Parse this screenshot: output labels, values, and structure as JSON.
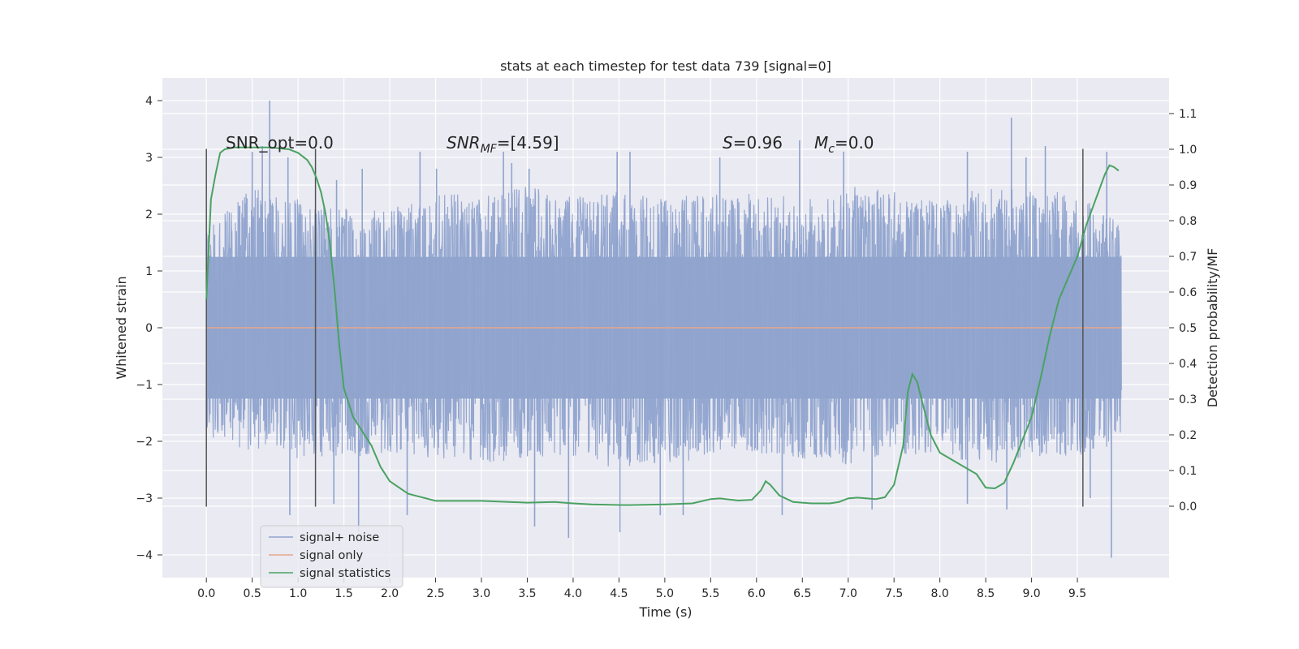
{
  "chart_data": {
    "type": "line",
    "title": "stats at each timestep for test data 739 [signal=0]",
    "xlabel": "Time (s)",
    "ylabel": "Whitened strain",
    "ylabel_right": "Detection probability/MF",
    "xlim": [
      -0.48,
      10.5
    ],
    "ylim": [
      -4.4,
      4.4
    ],
    "ylim_right": [
      -0.2,
      1.2
    ],
    "x_ticks": [
      "0.0",
      "0.5",
      "1.0",
      "1.5",
      "2.0",
      "2.5",
      "3.0",
      "3.5",
      "4.0",
      "4.5",
      "5.0",
      "5.5",
      "6.0",
      "6.5",
      "7.0",
      "7.5",
      "8.0",
      "8.5",
      "9.0",
      "9.5"
    ],
    "y_ticks": [
      "4",
      "3",
      "2",
      "1",
      "0",
      "−1",
      "−2",
      "−3",
      "−4"
    ],
    "y_ticks_right": [
      "1.1",
      "1.0",
      "0.9",
      "0.8",
      "0.7",
      "0.6",
      "0.5",
      "0.4",
      "0.3",
      "0.2",
      "0.1",
      "0.0"
    ],
    "annotations": {
      "snr_opt": "SNR_opt=0.0",
      "snr_mf_label": "SNR",
      "snr_mf_sub": "MF",
      "snr_mf_value": "=[4.59]",
      "s_label": "S",
      "s_value": "=0.96",
      "mc_label": "M",
      "mc_sub": "c",
      "mc_value": "=0.0"
    },
    "vlines_x": [
      0.0,
      1.19,
      9.56
    ],
    "vlines_yrange": [
      -3.15,
      3.15
    ],
    "series": [
      {
        "name": "signal+ noise",
        "color": "#8fa3ce",
        "axis": "left",
        "t_range": [
          0.0,
          9.98
        ],
        "envelope": {
          "t": [
            0,
            0.5,
            1.0,
            1.5,
            2.0,
            2.5,
            3.0,
            3.5,
            4.0,
            4.5,
            5.0,
            5.5,
            6.0,
            6.5,
            7.0,
            7.5,
            8.0,
            8.5,
            9.0,
            9.5,
            9.98
          ],
          "upper": [
            1.7,
            2.5,
            2.3,
            2.1,
            2.1,
            2.4,
            2.3,
            2.5,
            2.3,
            2.4,
            2.3,
            2.4,
            2.4,
            2.3,
            2.5,
            2.4,
            2.2,
            2.5,
            2.4,
            2.4,
            1.8
          ],
          "lower": [
            -1.9,
            -2.2,
            -2.3,
            -2.3,
            -2.2,
            -2.3,
            -2.4,
            -2.3,
            -2.3,
            -2.5,
            -2.4,
            -2.3,
            -2.2,
            -2.3,
            -2.4,
            -2.2,
            -2.3,
            -2.4,
            -2.3,
            -2.3,
            -2.0
          ]
        },
        "spikes": [
          {
            "t": 0.69,
            "v": 4.0
          },
          {
            "t": 0.5,
            "v": 3.1
          },
          {
            "t": 0.61,
            "v": 3.2
          },
          {
            "t": 0.89,
            "v": 3.0
          },
          {
            "t": 1.42,
            "v": 2.6
          },
          {
            "t": 1.7,
            "v": 2.8
          },
          {
            "t": 2.33,
            "v": 3.1
          },
          {
            "t": 2.51,
            "v": 2.8
          },
          {
            "t": 3.24,
            "v": 3.1
          },
          {
            "t": 3.33,
            "v": 2.9
          },
          {
            "t": 3.52,
            "v": 2.8
          },
          {
            "t": 4.48,
            "v": 3.1
          },
          {
            "t": 4.62,
            "v": 3.1
          },
          {
            "t": 5.6,
            "v": 3.0
          },
          {
            "t": 6.47,
            "v": 3.3
          },
          {
            "t": 6.95,
            "v": 3.1
          },
          {
            "t": 8.3,
            "v": 3.1
          },
          {
            "t": 8.78,
            "v": 3.7
          },
          {
            "t": 8.94,
            "v": 3.0
          },
          {
            "t": 9.15,
            "v": 3.2
          },
          {
            "t": 9.82,
            "v": 3.1
          },
          {
            "t": 0.91,
            "v": -3.3
          },
          {
            "t": 1.66,
            "v": -3.6
          },
          {
            "t": 1.39,
            "v": -3.1
          },
          {
            "t": 2.19,
            "v": -3.3
          },
          {
            "t": 3.58,
            "v": -3.5
          },
          {
            "t": 3.95,
            "v": -3.7
          },
          {
            "t": 4.51,
            "v": -3.6
          },
          {
            "t": 4.95,
            "v": -3.3
          },
          {
            "t": 5.2,
            "v": -3.3
          },
          {
            "t": 6.28,
            "v": -3.3
          },
          {
            "t": 7.26,
            "v": -3.2
          },
          {
            "t": 8.3,
            "v": -3.1
          },
          {
            "t": 8.73,
            "v": -3.2
          },
          {
            "t": 9.87,
            "v": -4.05
          },
          {
            "t": 9.64,
            "v": -3.0
          }
        ]
      },
      {
        "name": "signal only",
        "color": "#e8a68a",
        "axis": "left",
        "t": [
          0.0,
          9.98
        ],
        "values": [
          0.0,
          0.0
        ]
      },
      {
        "name": "signal statistics",
        "color": "#4aa262",
        "axis": "right",
        "t": [
          0.0,
          0.05,
          0.1,
          0.15,
          0.2,
          0.3,
          0.5,
          0.7,
          0.9,
          1.0,
          1.1,
          1.15,
          1.2,
          1.25,
          1.3,
          1.35,
          1.4,
          1.45,
          1.5,
          1.6,
          1.7,
          1.8,
          1.9,
          2.0,
          2.2,
          2.5,
          3.0,
          3.5,
          3.8,
          4.0,
          4.2,
          4.6,
          5.0,
          5.3,
          5.5,
          5.6,
          5.8,
          5.95,
          6.05,
          6.1,
          6.15,
          6.25,
          6.4,
          6.6,
          6.8,
          6.9,
          7.0,
          7.1,
          7.3,
          7.4,
          7.5,
          7.6,
          7.65,
          7.7,
          7.75,
          7.8,
          7.9,
          8.0,
          8.2,
          8.4,
          8.5,
          8.6,
          8.7,
          8.8,
          9.0,
          9.1,
          9.2,
          9.3,
          9.4,
          9.5,
          9.6,
          9.7,
          9.8,
          9.85,
          9.9,
          9.95
        ],
        "values": [
          0.58,
          0.86,
          0.93,
          0.99,
          1.0,
          1.005,
          1.005,
          1.005,
          1.0,
          0.99,
          0.97,
          0.95,
          0.92,
          0.88,
          0.82,
          0.73,
          0.6,
          0.45,
          0.33,
          0.25,
          0.21,
          0.17,
          0.11,
          0.07,
          0.035,
          0.015,
          0.015,
          0.01,
          0.012,
          0.008,
          0.005,
          0.003,
          0.005,
          0.008,
          0.02,
          0.022,
          0.016,
          0.018,
          0.045,
          0.07,
          0.06,
          0.03,
          0.012,
          0.008,
          0.008,
          0.012,
          0.022,
          0.024,
          0.02,
          0.025,
          0.06,
          0.17,
          0.32,
          0.37,
          0.35,
          0.3,
          0.2,
          0.15,
          0.12,
          0.09,
          0.052,
          0.05,
          0.065,
          0.12,
          0.25,
          0.36,
          0.48,
          0.58,
          0.64,
          0.7,
          0.79,
          0.86,
          0.93,
          0.955,
          0.95,
          0.94
        ]
      }
    ],
    "legend": {
      "position": "lower-left",
      "entries": [
        {
          "label": "signal+ noise",
          "color": "#8fa3ce"
        },
        {
          "label": "signal only",
          "color": "#e8a68a"
        },
        {
          "label": "signal statistics",
          "color": "#4aa262"
        }
      ]
    },
    "grid": true
  }
}
